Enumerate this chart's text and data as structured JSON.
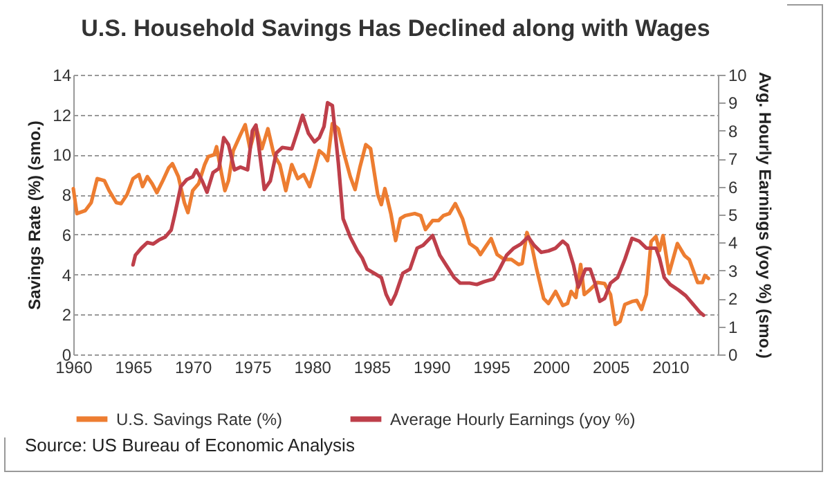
{
  "chart_data": {
    "type": "line",
    "title": "U.S. Household Savings Has Declined along with Wages",
    "ylabel": "Savings Rate (%) (smo.)",
    "y2label": "Avg. Hourly Earnings (yoy %) (smo.)",
    "xlim": [
      1960,
      2014
    ],
    "xticks": [
      1960,
      1965,
      1970,
      1975,
      1980,
      1985,
      1990,
      1995,
      2000,
      2005,
      2010
    ],
    "ylim": [
      0,
      14
    ],
    "yticks": [
      0,
      2,
      4,
      6,
      8,
      10,
      12,
      14
    ],
    "y2lim": [
      0,
      10
    ],
    "y2ticks": [
      0,
      1,
      2,
      3,
      4,
      5,
      6,
      7,
      8,
      9,
      10
    ],
    "grid": "y",
    "legend": "bottom",
    "annotations": [
      "Source: US Bureau of Economic Analysis"
    ],
    "series": [
      {
        "name": "U.S. Savings Rate (%)",
        "color": "#ed7d31",
        "x": [
          1960,
          1960.3,
          1961,
          1961.5,
          1962,
          1962.6,
          1963,
          1963.6,
          1964,
          1964.5,
          1965,
          1965.5,
          1965.8,
          1966.2,
          1966.6,
          1967,
          1967.5,
          1968,
          1968.3,
          1968.8,
          1969.3,
          1969.6,
          1970,
          1970.5,
          1971,
          1971.3,
          1971.8,
          1972,
          1972.4,
          1972.7,
          1973,
          1973.4,
          1974,
          1974.4,
          1974.8,
          1975.3,
          1975.8,
          1976.3,
          1976.8,
          1977.3,
          1977.8,
          1978.3,
          1978.8,
          1979.3,
          1979.8,
          1980.2,
          1980.6,
          1981,
          1981.3,
          1981.7,
          1982.2,
          1982.7,
          1983.2,
          1983.6,
          1984,
          1984.5,
          1984.9,
          1985.5,
          1985.8,
          1986.1,
          1986.6,
          1987,
          1987.4,
          1987.8,
          1988.6,
          1989.1,
          1989.5,
          1990.1,
          1990.6,
          1991,
          1991.5,
          1992,
          1992.6,
          1993.2,
          1993.8,
          1994.1,
          1994.6,
          1995,
          1995.5,
          1996.1,
          1996.7,
          1997.3,
          1997.6,
          1998,
          1998.4,
          1998.8,
          1999.4,
          1999.8,
          2000.4,
          2001,
          2001.4,
          2001.7,
          2002.1,
          2002.5,
          2002.8,
          2003.3,
          2003.9,
          2004.5,
          2005,
          2005.4,
          2005.8,
          2006.2,
          2006.8,
          2007.2,
          2007.6,
          2008,
          2008.4,
          2008.8,
          2009.1,
          2009.4,
          2009.9,
          2010.6,
          2011.2,
          2011.6,
          2012.3,
          2012.7,
          2012.9,
          2013.2
        ],
        "values": [
          8.3,
          7.05,
          7.2,
          7.6,
          8.8,
          8.7,
          8.2,
          7.6,
          7.55,
          8.0,
          8.8,
          9.0,
          8.4,
          8.9,
          8.55,
          8.1,
          8.7,
          9.35,
          9.55,
          8.9,
          7.6,
          7.1,
          8.2,
          8.55,
          9.5,
          9.9,
          10.0,
          10.4,
          9.1,
          8.2,
          8.7,
          10.2,
          11.0,
          11.5,
          10.3,
          11.4,
          10.3,
          11.3,
          10.0,
          9.5,
          8.2,
          9.5,
          8.8,
          9.0,
          8.4,
          9.25,
          10.2,
          10.0,
          9.7,
          11.55,
          11.3,
          10.0,
          8.9,
          8.25,
          9.35,
          10.5,
          10.3,
          8.0,
          7.5,
          8.3,
          7.05,
          5.7,
          6.8,
          6.95,
          7.05,
          6.95,
          6.25,
          6.7,
          6.7,
          6.95,
          7.05,
          7.55,
          6.8,
          5.55,
          5.3,
          5.0,
          5.45,
          5.8,
          5.0,
          4.75,
          4.75,
          4.5,
          4.55,
          6.1,
          5.45,
          4.3,
          2.8,
          2.55,
          3.15,
          2.45,
          2.55,
          3.15,
          2.85,
          4.5,
          3.0,
          3.25,
          3.6,
          3.55,
          3.0,
          1.5,
          1.65,
          2.5,
          2.65,
          2.7,
          2.25,
          3.0,
          5.65,
          5.9,
          5.2,
          5.95,
          4.05,
          5.55,
          4.95,
          4.75,
          3.6,
          3.6,
          3.95,
          3.8
        ]
      },
      {
        "name": "Average Hourly Earnings (yoy %)",
        "color": "#be3f4a",
        "axis": "y2",
        "x": [
          1965,
          1965.2,
          1965.7,
          1966.2,
          1966.7,
          1967.2,
          1967.7,
          1968.2,
          1968.5,
          1969,
          1969.5,
          1970,
          1970.3,
          1970.8,
          1971.2,
          1971.7,
          1972.2,
          1972.6,
          1973,
          1973.5,
          1974,
          1974.6,
          1975,
          1975.3,
          1975.7,
          1976,
          1976.5,
          1977,
          1977.5,
          1978.3,
          1978.8,
          1979.2,
          1979.7,
          1980.2,
          1980.6,
          1981,
          1981.3,
          1981.7,
          1982.2,
          1982.6,
          1983.2,
          1983.8,
          1984.2,
          1984.6,
          1985.2,
          1985.8,
          1986.2,
          1986.6,
          1987,
          1987.6,
          1988.2,
          1988.8,
          1989.3,
          1990.1,
          1990.7,
          1991.3,
          1991.9,
          1992.4,
          1993.2,
          1993.8,
          1994.4,
          1995.2,
          1995.7,
          1996.3,
          1996.9,
          1997.5,
          1998.1,
          1998.6,
          1999.2,
          1999.8,
          2000.4,
          2001,
          2001.4,
          2001.9,
          2002.3,
          2002.9,
          2003.3,
          2003.7,
          2004.1,
          2004.5,
          2005,
          2005.6,
          2006.2,
          2006.8,
          2007.4,
          2008,
          2008.8,
          2009.1,
          2009.5,
          2010,
          2010.7,
          2011.3,
          2011.9,
          2012.5,
          2012.8
        ],
        "values": [
          3.2,
          3.55,
          3.8,
          4.0,
          3.95,
          4.1,
          4.2,
          4.45,
          5.0,
          6.0,
          6.25,
          6.35,
          6.6,
          6.2,
          5.8,
          6.5,
          6.65,
          7.75,
          7.5,
          6.6,
          6.7,
          6.6,
          8.0,
          8.2,
          6.9,
          5.9,
          6.2,
          7.2,
          7.4,
          7.35,
          8.0,
          8.55,
          7.9,
          7.6,
          7.75,
          8.15,
          9.0,
          8.9,
          6.85,
          4.85,
          4.2,
          3.7,
          3.45,
          3.05,
          2.9,
          2.75,
          2.15,
          1.8,
          2.15,
          2.9,
          3.05,
          3.8,
          3.9,
          4.25,
          3.55,
          3.15,
          2.75,
          2.55,
          2.55,
          2.5,
          2.6,
          2.7,
          3.05,
          3.55,
          3.8,
          3.95,
          4.2,
          3.9,
          3.65,
          3.7,
          3.8,
          4.05,
          3.9,
          3.2,
          2.4,
          3.05,
          3.05,
          2.55,
          1.9,
          2.0,
          2.55,
          2.75,
          3.4,
          4.15,
          4.05,
          3.8,
          3.8,
          3.45,
          2.75,
          2.5,
          2.3,
          2.1,
          1.8,
          1.5,
          1.4
        ]
      }
    ]
  }
}
